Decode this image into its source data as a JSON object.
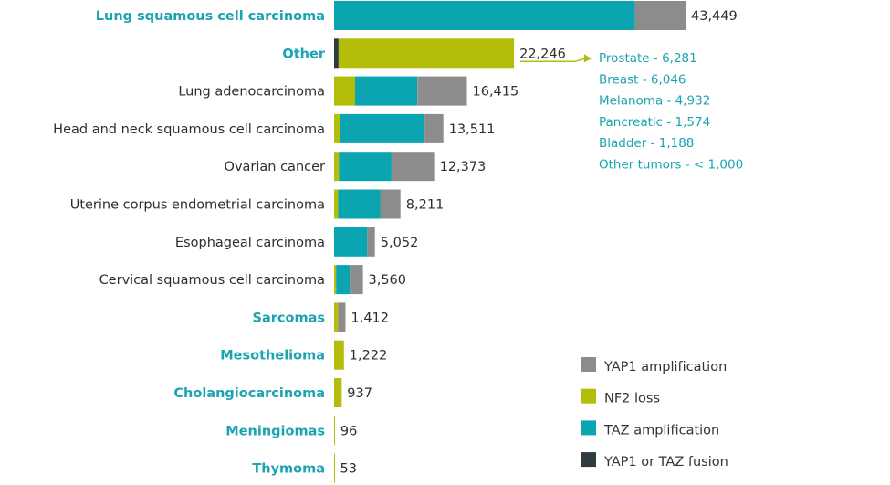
{
  "chart_data": {
    "type": "bar",
    "orientation": "horizontal",
    "stacked": true,
    "categories": [
      "Lung squamous cell carcinoma",
      "Other",
      "Lung adenocarcinoma",
      "Head and neck squamous cell carcinoma",
      "Ovarian cancer",
      "Uterine corpus endometrial carcinoma",
      "Esophageal carcinoma",
      "Cervical squamous cell carcinoma",
      "Sarcomas",
      "Mesothelioma",
      "Cholangiocarcinoma",
      "Meningiomas",
      "Thymoma"
    ],
    "highlighted_categories": [
      "Lung squamous cell carcinoma",
      "Other",
      "Sarcomas",
      "Mesothelioma",
      "Cholangiocarcinoma",
      "Meningiomas",
      "Thymoma"
    ],
    "series": [
      {
        "name": "YAP1 or TAZ fusion",
        "color": "#2f3b40",
        "values": [
          0,
          550,
          0,
          0,
          0,
          0,
          0,
          0,
          0,
          0,
          0,
          0,
          0
        ]
      },
      {
        "name": "NF2 loss",
        "color": "#b5bd0b",
        "values": [
          0,
          21696,
          2600,
          700,
          600,
          500,
          0,
          250,
          500,
          1222,
          937,
          96,
          53
        ]
      },
      {
        "name": "TAZ amplification",
        "color": "#0aa5b0",
        "values": [
          37200,
          0,
          7700,
          10500,
          6500,
          5200,
          4100,
          1700,
          0,
          0,
          0,
          0,
          0
        ]
      },
      {
        "name": "YAP1 amplification",
        "color": "#8c8c8c",
        "values": [
          6249,
          0,
          6115,
          2311,
          5273,
          2511,
          952,
          1610,
          912,
          0,
          0,
          0,
          0
        ]
      }
    ],
    "totals": [
      "43,449",
      "22,246",
      "16,415",
      "13,511",
      "12,373",
      "8,211",
      "5,052",
      "3,560",
      "1,412",
      "1,222",
      "937",
      "96",
      "53"
    ],
    "xlim": [
      0,
      43449
    ],
    "legend": {
      "position": "bottom-right",
      "items": [
        {
          "label": "YAP1 amplification",
          "color": "#8c8c8c"
        },
        {
          "label": "NF2 loss",
          "color": "#b5bd0b"
        },
        {
          "label": "TAZ amplification",
          "color": "#0aa5b0"
        },
        {
          "label": "YAP1 or TAZ fusion",
          "color": "#2f3b40"
        }
      ]
    },
    "annotation": {
      "category": "Other",
      "color": "#b5bd0b",
      "lines": [
        "Prostate - 6,281",
        "Breast - 6,046",
        "Melanoma - 4,932",
        "Pancreatic - 1,574",
        "Bladder - 1,188",
        "Other tumors - < 1,000"
      ]
    },
    "colors": {
      "highlight_text": "#1aa3b0",
      "text": "#2e2e2e"
    }
  }
}
